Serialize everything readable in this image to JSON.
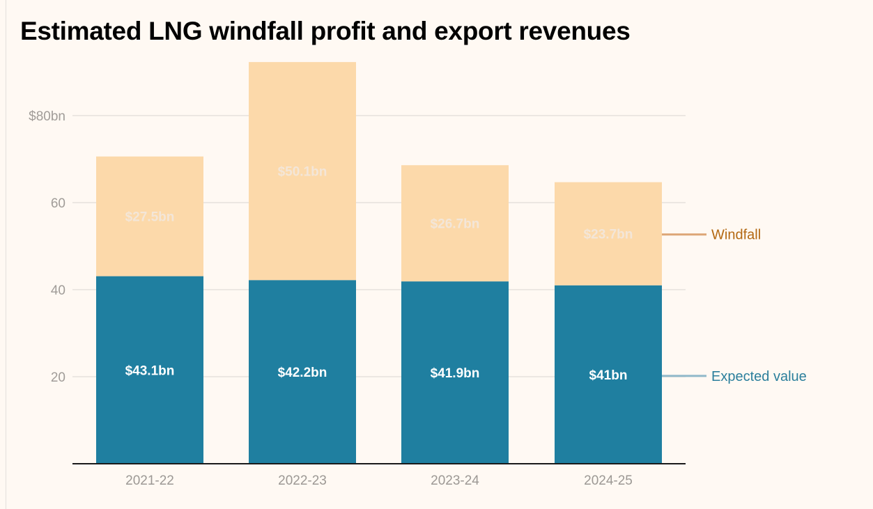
{
  "chart_data": {
    "type": "bar",
    "stacked": true,
    "title": "Estimated LNG windfall profit and export revenues",
    "xlabel": "",
    "ylabel": "",
    "ylim": [
      0,
      92
    ],
    "yticks": [
      20,
      40,
      60,
      80
    ],
    "ytick_labels": [
      "20",
      "40",
      "60",
      "$80bn"
    ],
    "grid": true,
    "categories": [
      "2021-22",
      "2022-23",
      "2023-24",
      "2024-25"
    ],
    "series": [
      {
        "name": "Expected value",
        "values": [
          43.1,
          42.2,
          41.9,
          41.0
        ],
        "labels": [
          "$43.1bn",
          "$42.2bn",
          "$41.9bn",
          "$41bn"
        ],
        "color": "#1f7fa0",
        "legend_color": "#2b7f9c"
      },
      {
        "name": "Windfall",
        "values": [
          27.5,
          50.1,
          26.7,
          23.7
        ],
        "labels": [
          "$27.5bn",
          "$50.1bn",
          "$26.7bn",
          "$23.7bn"
        ],
        "color": "#fcd9aa",
        "legend_color": "#b36812"
      }
    ],
    "legend": "right (direct labels)"
  }
}
